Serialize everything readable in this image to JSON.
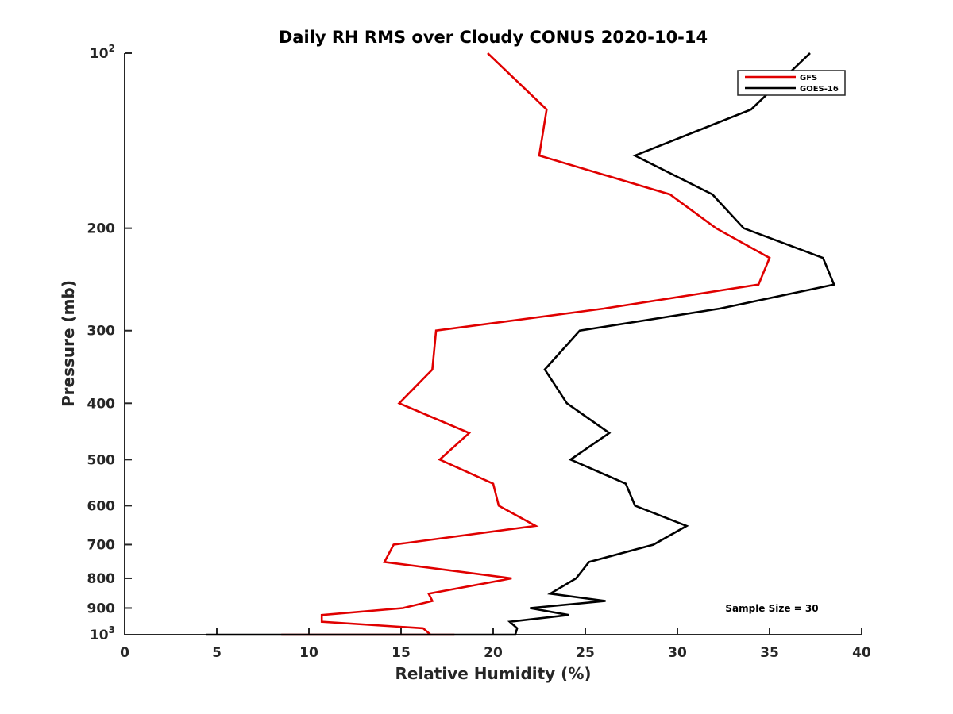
{
  "chart_data": {
    "type": "line",
    "title": "Daily RH RMS over Cloudy CONUS 2020-10-14",
    "xlabel": "Relative Humidity (%)",
    "ylabel": "Pressure (mb)",
    "xlim": [
      0,
      40
    ],
    "ylim": [
      100,
      1000
    ],
    "y_scale": "log",
    "y_reversed": true,
    "grid": false,
    "legend_position": "top-right",
    "x_ticks": [
      "0",
      "5",
      "10",
      "15",
      "20",
      "25",
      "30",
      "35",
      "40"
    ],
    "y_ticks": [
      {
        "value": 100,
        "label": "10",
        "sup": "2"
      },
      {
        "value": 200,
        "label": "200",
        "sup": ""
      },
      {
        "value": 300,
        "label": "300",
        "sup": ""
      },
      {
        "value": 400,
        "label": "400",
        "sup": ""
      },
      {
        "value": 500,
        "label": "500",
        "sup": ""
      },
      {
        "value": 600,
        "label": "600",
        "sup": ""
      },
      {
        "value": 700,
        "label": "700",
        "sup": ""
      },
      {
        "value": 800,
        "label": "800",
        "sup": ""
      },
      {
        "value": 900,
        "label": "900",
        "sup": ""
      },
      {
        "value": 1000,
        "label": "10",
        "sup": "3"
      }
    ],
    "series": [
      {
        "name": "GFS",
        "color": "#e00000",
        "points": [
          [
            19.7,
            100
          ],
          [
            22.9,
            125
          ],
          [
            22.5,
            150
          ],
          [
            29.6,
            175
          ],
          [
            32.1,
            200
          ],
          [
            35.0,
            225
          ],
          [
            34.4,
            250
          ],
          [
            26.0,
            275
          ],
          [
            16.9,
            300
          ],
          [
            16.7,
            350
          ],
          [
            14.9,
            400
          ],
          [
            18.7,
            450
          ],
          [
            17.1,
            500
          ],
          [
            20.0,
            550
          ],
          [
            20.3,
            600
          ],
          [
            22.3,
            650
          ],
          [
            14.6,
            700
          ],
          [
            14.1,
            750
          ],
          [
            21.0,
            800
          ],
          [
            16.5,
            850
          ],
          [
            16.7,
            875
          ],
          [
            15.1,
            900
          ],
          [
            10.7,
            925
          ],
          [
            10.7,
            950
          ],
          [
            16.2,
            975
          ],
          [
            16.6,
            1000
          ],
          [
            17.9,
            1000
          ],
          [
            17.2,
            1000
          ],
          [
            14.4,
            1000
          ],
          [
            17.9,
            1000
          ],
          [
            15.0,
            1000
          ],
          [
            12.8,
            1000
          ],
          [
            14.8,
            1000
          ],
          [
            12.5,
            1000
          ],
          [
            8.5,
            1000
          ],
          [
            8.6,
            1000
          ],
          [
            12.1,
            1000
          ],
          [
            9.6,
            1000
          ],
          [
            10.6,
            1000
          ],
          [
            10.7,
            1000
          ],
          [
            8.6,
            1000
          ]
        ]
      },
      {
        "name": "GOES-16",
        "color": "#000000",
        "points": [
          [
            37.2,
            100
          ],
          [
            34.0,
            125
          ],
          [
            27.7,
            150
          ],
          [
            31.9,
            175
          ],
          [
            33.6,
            200
          ],
          [
            37.9,
            225
          ],
          [
            38.5,
            250
          ],
          [
            32.3,
            275
          ],
          [
            24.7,
            300
          ],
          [
            22.8,
            350
          ],
          [
            24.0,
            400
          ],
          [
            26.3,
            450
          ],
          [
            24.2,
            500
          ],
          [
            27.2,
            550
          ],
          [
            27.7,
            600
          ],
          [
            30.5,
            650
          ],
          [
            28.7,
            700
          ],
          [
            25.2,
            750
          ],
          [
            24.5,
            800
          ],
          [
            23.1,
            850
          ],
          [
            26.1,
            875
          ],
          [
            22.0,
            900
          ],
          [
            24.1,
            925
          ],
          [
            20.9,
            950
          ],
          [
            21.3,
            975
          ],
          [
            21.2,
            1000
          ],
          [
            18.5,
            1000
          ],
          [
            18.6,
            1000
          ],
          [
            17.9,
            1000
          ],
          [
            14.7,
            1000
          ],
          [
            17.3,
            1000
          ],
          [
            16.7,
            1000
          ],
          [
            14.9,
            1000
          ],
          [
            13.1,
            1000
          ],
          [
            14.5,
            1000
          ],
          [
            12.4,
            1000
          ],
          [
            9.7,
            1000
          ],
          [
            9.0,
            1000
          ],
          [
            9.2,
            1000
          ],
          [
            13.1,
            1000
          ],
          [
            10.4,
            1000
          ],
          [
            10.4,
            1000
          ],
          [
            9.8,
            1000
          ],
          [
            4.4,
            1000
          ]
        ]
      }
    ],
    "annotation": "Sample Size = 30"
  }
}
